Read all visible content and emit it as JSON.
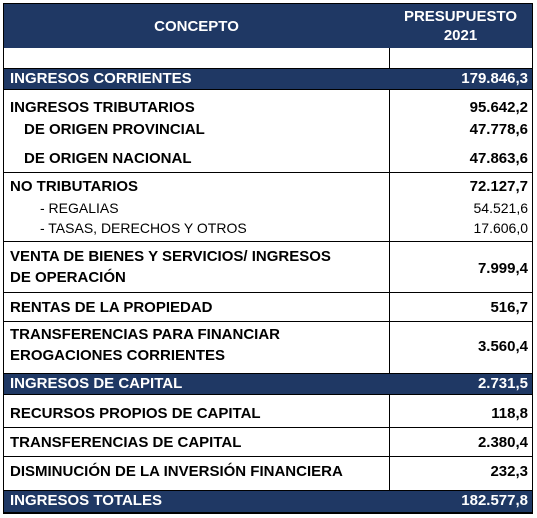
{
  "header": {
    "concepto": "CONCEPTO",
    "presupuesto_l1": "PRESUPUESTO",
    "presupuesto_l2": "2021"
  },
  "rows": {
    "ingresos_corrientes": {
      "label": "INGRESOS CORRIENTES",
      "value": "179.846,3"
    },
    "ingresos_tributarios": {
      "label": "INGRESOS TRIBUTARIOS",
      "value": "95.642,2"
    },
    "origen_provincial": {
      "label": "DE ORIGEN PROVINCIAL",
      "value": "47.778,6"
    },
    "origen_nacional": {
      "label": "DE ORIGEN NACIONAL",
      "value": "47.863,6"
    },
    "no_tributarios": {
      "label": "NO TRIBUTARIOS",
      "value": "72.127,7"
    },
    "regalias": {
      "label": "- REGALIAS",
      "value": "54.521,6"
    },
    "tasas": {
      "label": "- TASAS, DERECHOS Y OTROS",
      "value": "17.606,0"
    },
    "venta_bienes": {
      "label_l1": "VENTA DE BIENES Y SERVICIOS/ INGRESOS",
      "label_l2": "DE OPERACIÓN",
      "value": "7.999,4"
    },
    "rentas": {
      "label": "RENTAS DE LA PROPIEDAD",
      "value": "516,7"
    },
    "transferencias_corrientes": {
      "label_l1": "TRANSFERENCIAS PARA FINANCIAR",
      "label_l2": "EROGACIONES CORRIENTES",
      "value": "3.560,4"
    },
    "ingresos_capital": {
      "label": "INGRESOS DE CAPITAL",
      "value": "2.731,5"
    },
    "recursos_propios": {
      "label": "RECURSOS PROPIOS DE CAPITAL",
      "value": "118,8"
    },
    "transferencias_capital": {
      "label": "TRANSFERENCIAS DE CAPITAL",
      "value": "2.380,4"
    },
    "disminucion_inversion": {
      "label": "DISMINUCIÓN DE LA INVERSIÓN FINANCIERA",
      "value": "232,3"
    },
    "ingresos_totales": {
      "label": "INGRESOS TOTALES",
      "value": "182.577,8"
    }
  },
  "colors": {
    "band": "#1f3864",
    "band_text": "#ffffff"
  }
}
